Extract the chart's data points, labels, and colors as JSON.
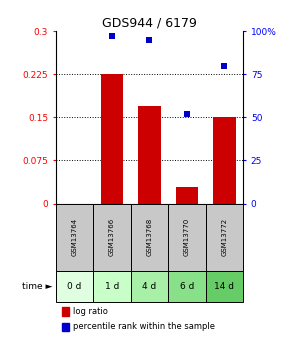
{
  "title": "GDS944 / 6179",
  "samples": [
    "GSM13764",
    "GSM13766",
    "GSM13768",
    "GSM13770",
    "GSM13772"
  ],
  "time_labels": [
    "0 d",
    "1 d",
    "4 d",
    "6 d",
    "14 d"
  ],
  "log_ratio": [
    0.0,
    0.225,
    0.17,
    0.028,
    0.15
  ],
  "percentile_rank": [
    null,
    97.0,
    95.0,
    52.0,
    80.0
  ],
  "bar_color": "#cc0000",
  "dot_color": "#0000cc",
  "left_ylim": [
    0,
    0.3
  ],
  "right_ylim": [
    0,
    100
  ],
  "left_yticks": [
    0,
    0.075,
    0.15,
    0.225,
    0.3
  ],
  "left_ytick_labels": [
    "0",
    "0.075",
    "0.15",
    "0.225",
    "0.3"
  ],
  "right_yticks": [
    0,
    25,
    50,
    75,
    100
  ],
  "right_ytick_labels": [
    "0",
    "25",
    "50",
    "75",
    "100%"
  ],
  "dotted_lines": [
    0.075,
    0.15,
    0.225
  ],
  "sample_box_color": "#c8c8c8",
  "time_box_colors": [
    "#e0ffe0",
    "#c8ffc8",
    "#a8f0a8",
    "#88e088",
    "#66cc66"
  ],
  "legend_red_label": "log ratio",
  "legend_blue_label": "percentile rank within the sample",
  "bar_width": 0.6,
  "bg_color": "#ffffff"
}
